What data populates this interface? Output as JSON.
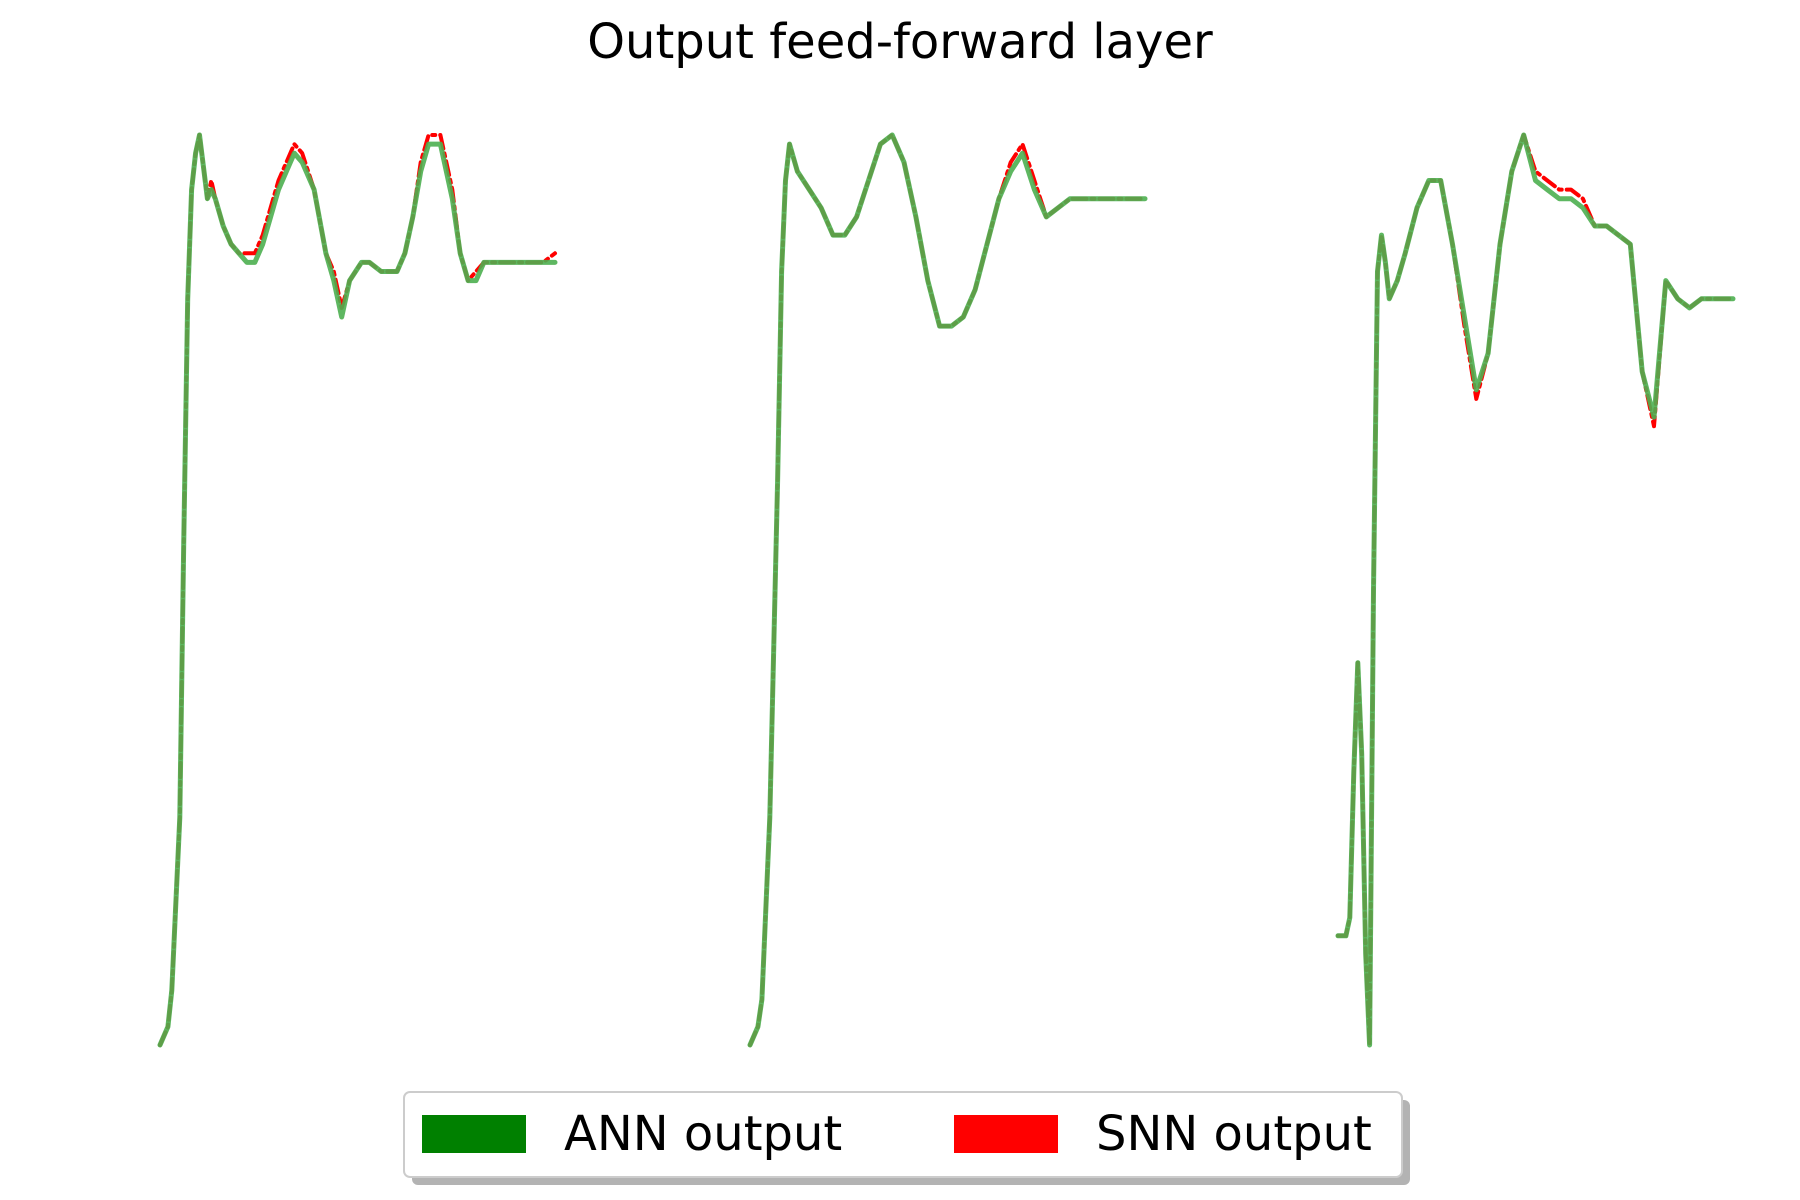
{
  "chart_data": {
    "type": "line",
    "title": "Output feed-forward layer",
    "xlabel": "",
    "ylabel": "",
    "grid": false,
    "axes_visible": false,
    "legend_placement": "bottom-center",
    "colors": {
      "ANN output": "#008000",
      "SNN output": "#ff0000"
    },
    "legend": [
      {
        "name": "ANN output",
        "color": "#008000"
      },
      {
        "name": "SNN output",
        "color": "#ff0000"
      }
    ],
    "panels": [
      {
        "xlim": [
          0,
          100
        ],
        "ylim": [
          0,
          1
        ],
        "series": [
          {
            "name": "ANN output",
            "color": "#4caf50",
            "x": [
              0,
              2,
              3,
              5,
              6,
              7,
              8,
              9,
              10,
              12,
              13,
              14,
              16,
              18,
              20,
              22,
              24,
              26,
              28,
              30,
              32,
              34,
              36,
              39,
              42,
              44,
              46,
              48,
              51,
              53,
              56,
              58,
              60,
              62,
              64,
              66,
              68,
              71,
              74,
              76,
              78,
              80,
              82,
              84,
              86,
              88,
              90,
              92,
              94,
              96,
              97,
              100
            ],
            "y": [
              0.0,
              0.02,
              0.06,
              0.25,
              0.55,
              0.82,
              0.94,
              0.98,
              1.0,
              0.93,
              0.94,
              0.93,
              0.9,
              0.88,
              0.87,
              0.86,
              0.86,
              0.88,
              0.91,
              0.94,
              0.96,
              0.98,
              0.97,
              0.94,
              0.87,
              0.84,
              0.8,
              0.84,
              0.86,
              0.86,
              0.85,
              0.85,
              0.85,
              0.87,
              0.91,
              0.96,
              0.99,
              0.99,
              0.93,
              0.87,
              0.84,
              0.84,
              0.86,
              0.86,
              0.86,
              0.86,
              0.86,
              0.86,
              0.86,
              0.86,
              0.86,
              0.86
            ]
          },
          {
            "name": "SNN output",
            "color": "#ff0000",
            "x": [
              0,
              2,
              3,
              5,
              6,
              7,
              8,
              9,
              10,
              12,
              13,
              14,
              16,
              18,
              20,
              22,
              24,
              26,
              28,
              30,
              32,
              34,
              36,
              39,
              42,
              44,
              46,
              48,
              51,
              53,
              56,
              58,
              60,
              62,
              64,
              66,
              68,
              71,
              74,
              76,
              78,
              80,
              82,
              84,
              86,
              88,
              90,
              92,
              94,
              96,
              97,
              100
            ],
            "y": [
              0.0,
              0.02,
              0.06,
              0.25,
              0.55,
              0.82,
              0.94,
              0.98,
              1.0,
              0.93,
              0.95,
              0.93,
              0.9,
              0.88,
              0.87,
              0.87,
              0.87,
              0.89,
              0.92,
              0.95,
              0.97,
              0.99,
              0.98,
              0.94,
              0.87,
              0.85,
              0.81,
              0.84,
              0.86,
              0.86,
              0.85,
              0.85,
              0.85,
              0.87,
              0.91,
              0.97,
              1.0,
              1.0,
              0.94,
              0.87,
              0.84,
              0.85,
              0.86,
              0.86,
              0.86,
              0.86,
              0.86,
              0.86,
              0.86,
              0.86,
              0.86,
              0.87
            ]
          }
        ]
      },
      {
        "xlim": [
          0,
          100
        ],
        "ylim": [
          0,
          1
        ],
        "series": [
          {
            "name": "ANN output",
            "color": "#4caf50",
            "x": [
              0,
              2,
              3,
              5,
              7,
              8,
              9,
              10,
              12,
              15,
              18,
              21,
              24,
              27,
              30,
              33,
              36,
              39,
              42,
              45,
              48,
              51,
              54,
              57,
              60,
              63,
              66,
              69,
              72,
              75,
              78,
              81,
              84,
              87,
              90,
              93,
              96,
              100
            ],
            "y": [
              0.0,
              0.02,
              0.05,
              0.25,
              0.62,
              0.85,
              0.95,
              0.99,
              0.96,
              0.94,
              0.92,
              0.89,
              0.89,
              0.91,
              0.95,
              0.99,
              1.0,
              0.97,
              0.91,
              0.84,
              0.79,
              0.79,
              0.8,
              0.83,
              0.88,
              0.93,
              0.96,
              0.98,
              0.94,
              0.91,
              0.92,
              0.93,
              0.93,
              0.93,
              0.93,
              0.93,
              0.93,
              0.93
            ]
          },
          {
            "name": "SNN output",
            "color": "#ff0000",
            "x": [
              0,
              2,
              3,
              5,
              7,
              8,
              9,
              10,
              12,
              15,
              18,
              21,
              24,
              27,
              30,
              33,
              36,
              39,
              42,
              45,
              48,
              51,
              54,
              57,
              60,
              63,
              66,
              69,
              72,
              75,
              78,
              81,
              84,
              87,
              90,
              93,
              96,
              100
            ],
            "y": [
              0.0,
              0.02,
              0.05,
              0.25,
              0.62,
              0.85,
              0.95,
              0.99,
              0.96,
              0.94,
              0.92,
              0.89,
              0.89,
              0.91,
              0.95,
              0.99,
              1.0,
              0.97,
              0.91,
              0.84,
              0.79,
              0.79,
              0.8,
              0.83,
              0.88,
              0.93,
              0.97,
              0.99,
              0.95,
              0.91,
              0.92,
              0.93,
              0.93,
              0.93,
              0.93,
              0.93,
              0.93,
              0.93
            ]
          }
        ]
      },
      {
        "xlim": [
          0,
          100
        ],
        "ylim": [
          0,
          1
        ],
        "series": [
          {
            "name": "ANN output",
            "color": "#4caf50",
            "x": [
              0,
              2,
              3,
              4,
              5,
              6,
              7,
              8,
              9,
              10,
              11,
              12,
              13,
              15,
              17,
              20,
              23,
              26,
              29,
              32,
              35,
              38,
              41,
              44,
              47,
              50,
              53,
              56,
              59,
              62,
              65,
              68,
              71,
              74,
              77,
              80,
              83,
              86,
              89,
              92,
              95,
              98,
              100
            ],
            "y": [
              0.12,
              0.12,
              0.14,
              0.3,
              0.42,
              0.32,
              0.1,
              0.0,
              0.5,
              0.85,
              0.89,
              0.86,
              0.82,
              0.84,
              0.87,
              0.92,
              0.95,
              0.95,
              0.88,
              0.8,
              0.72,
              0.76,
              0.88,
              0.96,
              1.0,
              0.95,
              0.94,
              0.93,
              0.93,
              0.92,
              0.9,
              0.9,
              0.89,
              0.88,
              0.74,
              0.69,
              0.84,
              0.82,
              0.81,
              0.82,
              0.82,
              0.82,
              0.82
            ]
          },
          {
            "name": "SNN output",
            "color": "#ff0000",
            "x": [
              0,
              2,
              3,
              4,
              5,
              6,
              7,
              8,
              9,
              10,
              11,
              12,
              13,
              15,
              17,
              20,
              23,
              26,
              29,
              32,
              35,
              38,
              41,
              44,
              47,
              50,
              53,
              56,
              59,
              62,
              65,
              68,
              71,
              74,
              77,
              80,
              83,
              86,
              89,
              92,
              95,
              98,
              100
            ],
            "y": [
              0.12,
              0.12,
              0.14,
              0.3,
              0.42,
              0.32,
              0.1,
              0.0,
              0.5,
              0.85,
              0.89,
              0.86,
              0.82,
              0.84,
              0.87,
              0.92,
              0.95,
              0.95,
              0.88,
              0.79,
              0.71,
              0.76,
              0.88,
              0.96,
              1.0,
              0.96,
              0.95,
              0.94,
              0.94,
              0.93,
              0.9,
              0.9,
              0.89,
              0.88,
              0.74,
              0.68,
              0.84,
              0.82,
              0.81,
              0.82,
              0.82,
              0.82,
              0.82
            ]
          }
        ]
      }
    ]
  }
}
